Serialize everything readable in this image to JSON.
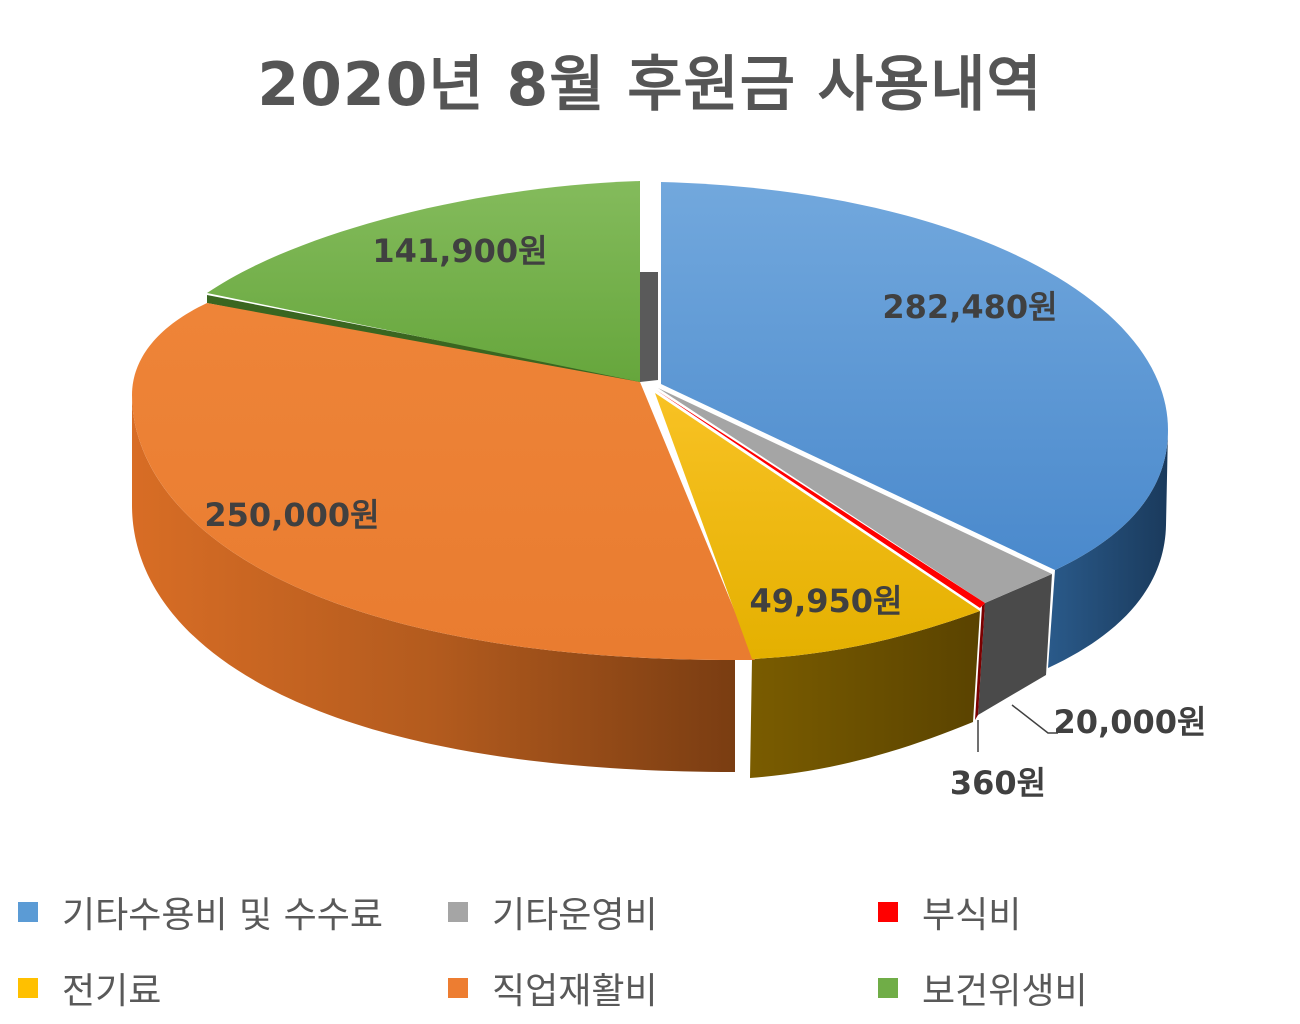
{
  "chart_data": {
    "type": "pie",
    "title": "2020년 8월 후원금 사용내역",
    "categories": [
      "기타수용비 및 수수료",
      "기타운영비",
      "부식비",
      "전기료",
      "직업재활비",
      "보건위생비"
    ],
    "values": [
      282480,
      20000,
      360,
      49950,
      250000,
      141900
    ],
    "data_labels": [
      "282,480원",
      "20,000원",
      "360원",
      "49,950원",
      "250,000원",
      "141,900원"
    ],
    "colors": [
      "#5B9BD5",
      "#A5A5A5",
      "#FF0000",
      "#FFC000",
      "#ED7D31",
      "#70AD47"
    ],
    "legend_position": "bottom",
    "style": "3d-exploded"
  }
}
